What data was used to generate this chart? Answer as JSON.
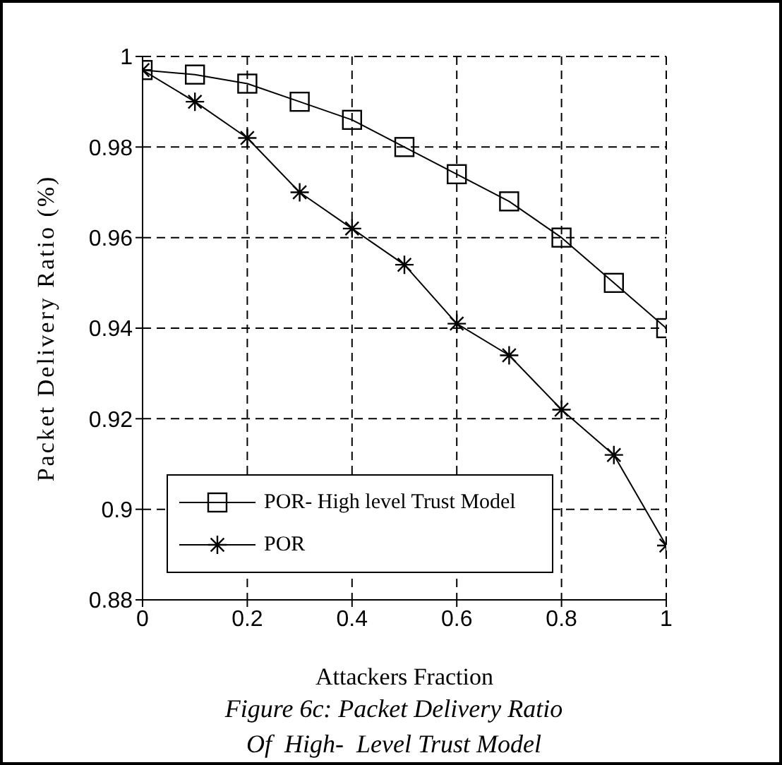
{
  "chart_data": {
    "type": "line",
    "xlabel": "Attackers Fraction",
    "ylabel": "Packet Delivery Ratio (%)",
    "x": [
      0,
      0.1,
      0.2,
      0.3,
      0.4,
      0.5,
      0.6,
      0.7,
      0.8,
      0.9,
      1
    ],
    "series": [
      {
        "name": "POR- High level Trust Model",
        "color": "#000000",
        "marker": "square",
        "values": [
          0.997,
          0.996,
          0.994,
          0.99,
          0.986,
          0.98,
          0.974,
          0.968,
          0.96,
          0.95,
          0.94
        ]
      },
      {
        "name": "POR",
        "color": "#000000",
        "marker": "cross",
        "values": [
          0.997,
          0.99,
          0.982,
          0.97,
          0.962,
          0.954,
          0.941,
          0.934,
          0.922,
          0.912,
          0.892
        ]
      }
    ],
    "xlim": [
      0,
      1
    ],
    "xticks": [
      0,
      0.2,
      0.4,
      0.6,
      0.8,
      1
    ],
    "ylim": [
      0.88,
      1
    ],
    "yticks": [
      0.88,
      0.9,
      0.92,
      0.94,
      0.96,
      0.98,
      1
    ],
    "grid": true,
    "legend": "bottom left",
    "line_style": "solid",
    "annotations": [
      "Figure 6c: Packet Delivery Ratio",
      "Of  High-  Level Trust Model"
    ]
  }
}
